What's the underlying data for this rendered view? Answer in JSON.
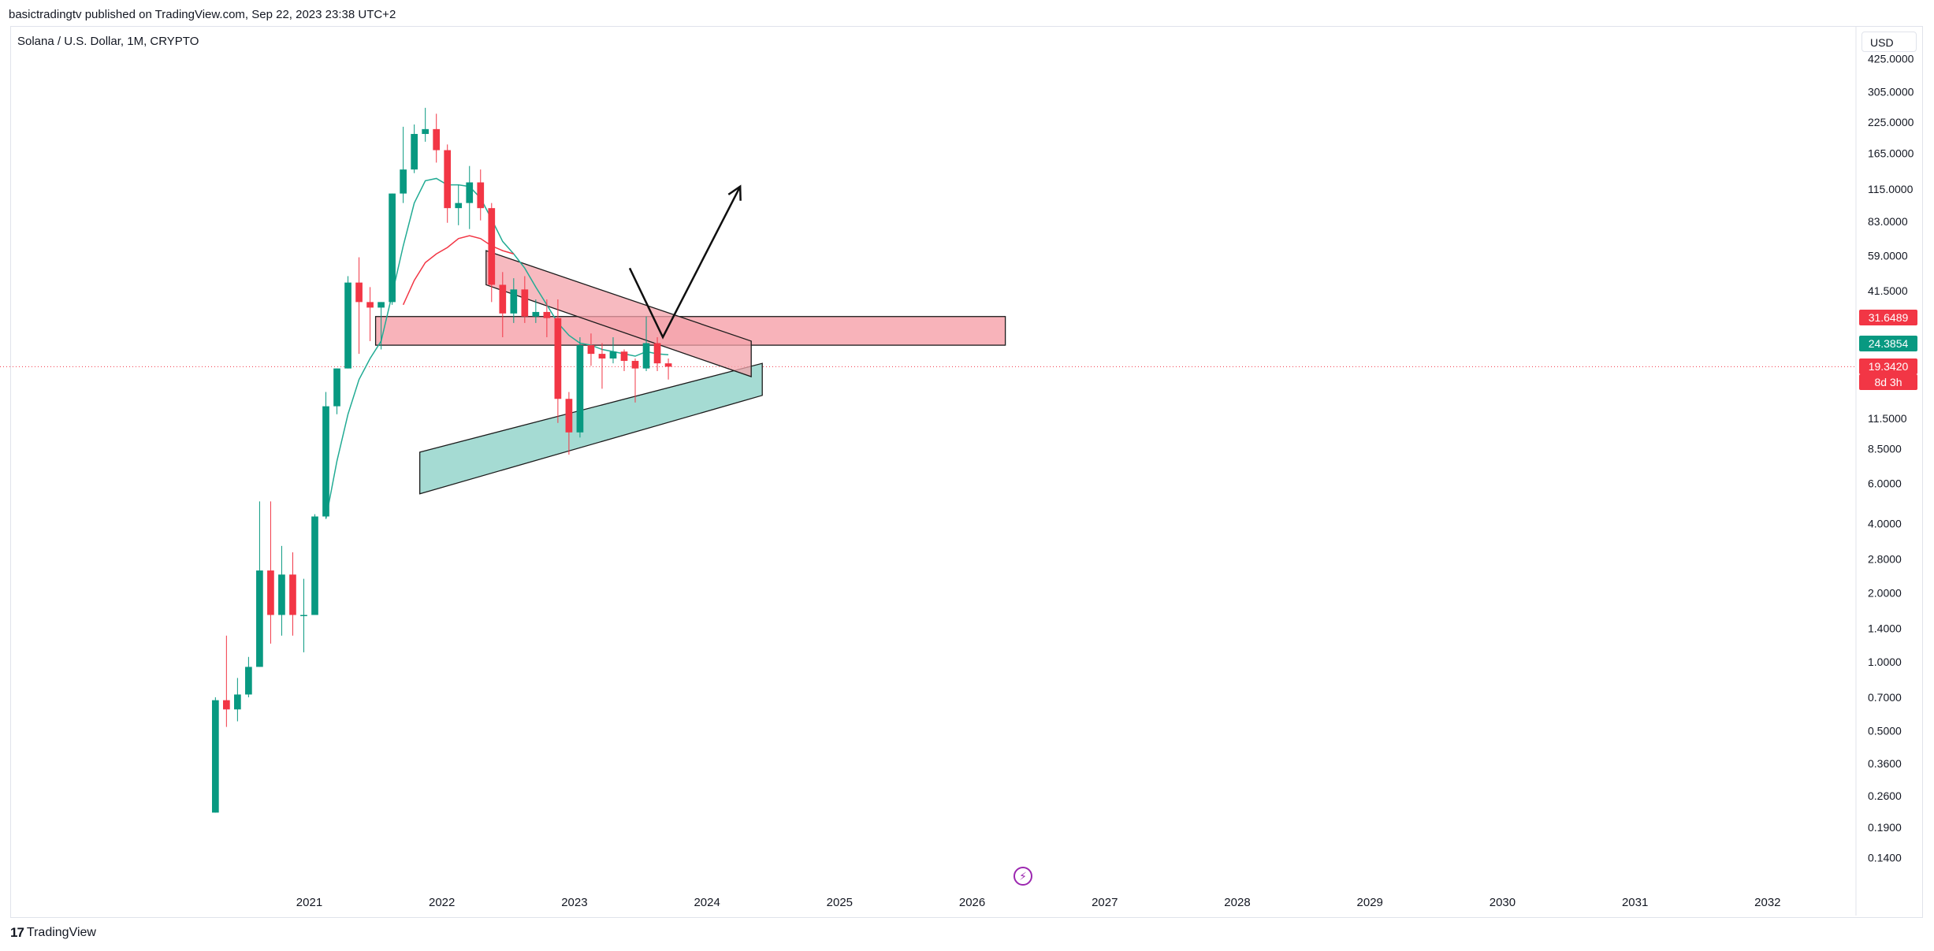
{
  "header": {
    "published_by": "basictradingtv published on TradingView.com, Sep 22, 2023 23:38 UTC+2",
    "symbol_title": "Solana / U.S. Dollar, 1M, CRYPTO"
  },
  "toolbar": {
    "currency_label": "USD"
  },
  "footer": {
    "logo_mark": "17",
    "logo_text": "TradingView"
  },
  "icons": {
    "flash": "lightning-icon"
  },
  "colors": {
    "up": "#089981",
    "down": "#f23645",
    "resistance_zone": "#f7a6ae",
    "support_channel": "#a5dbd3",
    "wedge": "#f4a3ab",
    "ma_fast": "#22ab94",
    "ma_slow": "#f23645",
    "current_price_line": "#f23645"
  },
  "price_tags": [
    {
      "label": "31.6489",
      "price": 31.6489,
      "color": "#f23645"
    },
    {
      "label": "24.3854",
      "price": 24.3854,
      "color": "#089981"
    },
    {
      "label": "19.3420",
      "price": 19.342,
      "color": "#f23645",
      "sub": "8d 3h"
    }
  ],
  "chart_data": {
    "type": "candlestick",
    "title": "Solana / U.S. Dollar, 1M, CRYPTO",
    "y_scale": "log",
    "ylim": [
      0.12,
      470
    ],
    "y_ticks": [
      {
        "label": "425.0000",
        "value": 425
      },
      {
        "label": "305.0000",
        "value": 305
      },
      {
        "label": "225.0000",
        "value": 225
      },
      {
        "label": "165.0000",
        "value": 165
      },
      {
        "label": "115.0000",
        "value": 115
      },
      {
        "label": "83.0000",
        "value": 83
      },
      {
        "label": "59.0000",
        "value": 59
      },
      {
        "label": "41.5000",
        "value": 41.5
      },
      {
        "label": "11.5000",
        "value": 11.5
      },
      {
        "label": "8.5000",
        "value": 8.5
      },
      {
        "label": "6.0000",
        "value": 6
      },
      {
        "label": "4.0000",
        "value": 4
      },
      {
        "label": "2.8000",
        "value": 2.8
      },
      {
        "label": "2.0000",
        "value": 2
      },
      {
        "label": "1.4000",
        "value": 1.4
      },
      {
        "label": "1.0000",
        "value": 1
      },
      {
        "label": "0.7000",
        "value": 0.7
      },
      {
        "label": "0.5000",
        "value": 0.5
      },
      {
        "label": "0.3600",
        "value": 0.36
      },
      {
        "label": "0.2600",
        "value": 0.26
      },
      {
        "label": "0.1900",
        "value": 0.19
      },
      {
        "label": "0.1400",
        "value": 0.14
      }
    ],
    "x_ticks": [
      "2021",
      "2022",
      "2023",
      "2024",
      "2025",
      "2026",
      "2027",
      "2028",
      "2029",
      "2030",
      "2031",
      "2032"
    ],
    "xlim": [
      "2018-10",
      "2032-09"
    ],
    "candles": [
      {
        "t": "2020-04",
        "o": 0.22,
        "h": 0.7,
        "l": 0.22,
        "c": 0.68
      },
      {
        "t": "2020-05",
        "o": 0.68,
        "h": 1.3,
        "l": 0.52,
        "c": 0.62
      },
      {
        "t": "2020-06",
        "o": 0.62,
        "h": 0.85,
        "l": 0.55,
        "c": 0.72
      },
      {
        "t": "2020-07",
        "o": 0.72,
        "h": 1.05,
        "l": 0.7,
        "c": 0.95
      },
      {
        "t": "2020-08",
        "o": 0.95,
        "h": 5.0,
        "l": 0.95,
        "c": 2.5
      },
      {
        "t": "2020-09",
        "o": 2.5,
        "h": 5.0,
        "l": 1.2,
        "c": 1.6
      },
      {
        "t": "2020-10",
        "o": 1.6,
        "h": 3.2,
        "l": 1.3,
        "c": 2.4
      },
      {
        "t": "2020-11",
        "o": 2.4,
        "h": 3.0,
        "l": 1.3,
        "c": 1.6
      },
      {
        "t": "2020-12",
        "o": 1.6,
        "h": 2.3,
        "l": 1.1,
        "c": 1.6
      },
      {
        "t": "2021-01",
        "o": 1.6,
        "h": 4.4,
        "l": 1.6,
        "c": 4.3
      },
      {
        "t": "2021-02",
        "o": 4.3,
        "h": 15.0,
        "l": 4.2,
        "c": 13.0
      },
      {
        "t": "2021-03",
        "o": 13.0,
        "h": 19.0,
        "l": 12.0,
        "c": 19.0
      },
      {
        "t": "2021-04",
        "o": 19.0,
        "h": 48.0,
        "l": 19.0,
        "c": 45.0
      },
      {
        "t": "2021-05",
        "o": 45.0,
        "h": 58.0,
        "l": 22.0,
        "c": 37.0
      },
      {
        "t": "2021-06",
        "o": 37.0,
        "h": 43.0,
        "l": 25.0,
        "c": 35.0
      },
      {
        "t": "2021-07",
        "o": 35.0,
        "h": 37.0,
        "l": 23.0,
        "c": 37.0
      },
      {
        "t": "2021-08",
        "o": 37.0,
        "h": 110.0,
        "l": 36.0,
        "c": 110.0
      },
      {
        "t": "2021-09",
        "o": 110.0,
        "h": 215.0,
        "l": 100.0,
        "c": 140.0
      },
      {
        "t": "2021-10",
        "o": 140.0,
        "h": 220.0,
        "l": 135.0,
        "c": 200.0
      },
      {
        "t": "2021-11",
        "o": 200.0,
        "h": 260.0,
        "l": 185.0,
        "c": 210.0
      },
      {
        "t": "2021-12",
        "o": 210.0,
        "h": 245.0,
        "l": 150.0,
        "c": 170.0
      },
      {
        "t": "2022-01",
        "o": 170.0,
        "h": 180.0,
        "l": 82.0,
        "c": 95.0
      },
      {
        "t": "2022-02",
        "o": 95.0,
        "h": 120.0,
        "l": 80.0,
        "c": 100.0
      },
      {
        "t": "2022-03",
        "o": 100.0,
        "h": 145.0,
        "l": 77.0,
        "c": 123.0
      },
      {
        "t": "2022-04",
        "o": 123.0,
        "h": 140.0,
        "l": 84.0,
        "c": 95.0
      },
      {
        "t": "2022-05",
        "o": 95.0,
        "h": 100.0,
        "l": 37.0,
        "c": 44.0
      },
      {
        "t": "2022-06",
        "o": 44.0,
        "h": 50.0,
        "l": 26.0,
        "c": 33.0
      },
      {
        "t": "2022-07",
        "o": 33.0,
        "h": 47.0,
        "l": 30.0,
        "c": 42.0
      },
      {
        "t": "2022-08",
        "o": 42.0,
        "h": 48.0,
        "l": 30.0,
        "c": 32.0
      },
      {
        "t": "2022-09",
        "o": 32.0,
        "h": 38.0,
        "l": 30.0,
        "c": 33.5
      },
      {
        "t": "2022-10",
        "o": 33.5,
        "h": 38.0,
        "l": 26.0,
        "c": 31.5
      },
      {
        "t": "2022-11",
        "o": 31.5,
        "h": 38.0,
        "l": 11.0,
        "c": 14.0
      },
      {
        "t": "2022-12",
        "o": 14.0,
        "h": 15.0,
        "l": 8.0,
        "c": 10.0
      },
      {
        "t": "2023-01",
        "o": 10.0,
        "h": 26.0,
        "l": 9.5,
        "c": 24.0
      },
      {
        "t": "2023-02",
        "o": 24.0,
        "h": 27.0,
        "l": 19.5,
        "c": 22.0
      },
      {
        "t": "2023-03",
        "o": 22.0,
        "h": 24.5,
        "l": 15.5,
        "c": 21.0
      },
      {
        "t": "2023-04",
        "o": 21.0,
        "h": 26.0,
        "l": 20.0,
        "c": 22.5
      },
      {
        "t": "2023-05",
        "o": 22.5,
        "h": 23.0,
        "l": 18.5,
        "c": 20.5
      },
      {
        "t": "2023-06",
        "o": 20.5,
        "h": 21.0,
        "l": 13.5,
        "c": 19.0
      },
      {
        "t": "2023-07",
        "o": 19.0,
        "h": 32.0,
        "l": 18.5,
        "c": 24.5
      },
      {
        "t": "2023-08",
        "o": 24.5,
        "h": 26.0,
        "l": 18.5,
        "c": 20.0
      },
      {
        "t": "2023-09",
        "o": 20.0,
        "h": 21.0,
        "l": 17.0,
        "c": 19.34
      }
    ],
    "ma_fast": [
      {
        "t": "2021-02",
        "v": 4.2
      },
      {
        "t": "2021-03",
        "v": 7.5
      },
      {
        "t": "2021-04",
        "v": 12.0
      },
      {
        "t": "2021-05",
        "v": 17.0
      },
      {
        "t": "2021-06",
        "v": 21.0
      },
      {
        "t": "2021-07",
        "v": 25.0
      },
      {
        "t": "2021-08",
        "v": 40.0
      },
      {
        "t": "2021-09",
        "v": 65.0
      },
      {
        "t": "2021-10",
        "v": 100.0
      },
      {
        "t": "2021-11",
        "v": 125.0
      },
      {
        "t": "2021-12",
        "v": 128.0
      },
      {
        "t": "2022-01",
        "v": 120.0
      },
      {
        "t": "2022-02",
        "v": 120.0
      },
      {
        "t": "2022-03",
        "v": 118.0
      },
      {
        "t": "2022-04",
        "v": 105.0
      },
      {
        "t": "2022-05",
        "v": 85.0
      },
      {
        "t": "2022-06",
        "v": 68.0
      },
      {
        "t": "2022-07",
        "v": 60.0
      },
      {
        "t": "2022-08",
        "v": 52.0
      },
      {
        "t": "2022-09",
        "v": 43.0
      },
      {
        "t": "2022-10",
        "v": 36.0
      },
      {
        "t": "2022-11",
        "v": 30.0
      },
      {
        "t": "2022-12",
        "v": 26.5
      },
      {
        "t": "2023-01",
        "v": 24.5
      },
      {
        "t": "2023-02",
        "v": 24.0
      },
      {
        "t": "2023-03",
        "v": 23.0
      },
      {
        "t": "2023-04",
        "v": 22.5
      },
      {
        "t": "2023-05",
        "v": 22.0
      },
      {
        "t": "2023-06",
        "v": 21.5
      },
      {
        "t": "2023-07",
        "v": 22.5
      },
      {
        "t": "2023-08",
        "v": 22.0
      },
      {
        "t": "2023-09",
        "v": 21.8
      }
    ],
    "ma_slow": [
      {
        "t": "2021-09",
        "v": 36.0
      },
      {
        "t": "2021-10",
        "v": 46.0
      },
      {
        "t": "2021-11",
        "v": 55.0
      },
      {
        "t": "2021-12",
        "v": 60.0
      },
      {
        "t": "2022-01",
        "v": 64.0
      },
      {
        "t": "2022-02",
        "v": 70.0
      },
      {
        "t": "2022-03",
        "v": 72.0
      },
      {
        "t": "2022-04",
        "v": 70.0
      },
      {
        "t": "2022-05",
        "v": 65.0
      },
      {
        "t": "2022-06",
        "v": 62.0
      },
      {
        "t": "2022-07",
        "v": 60.0
      }
    ],
    "annotations": {
      "resistance_zone": {
        "t1": "2021-07",
        "t2": "2026-04",
        "p_low": 24.0,
        "p_high": 32.0
      },
      "wedge": [
        {
          "t": "2022-05",
          "p": 62.0
        },
        {
          "t": "2024-05",
          "p": 25.0
        },
        {
          "t": "2024-05",
          "p": 17.5
        },
        {
          "t": "2022-05",
          "p": 44.0
        }
      ],
      "support_channel": [
        {
          "t": "2021-11",
          "p": 8.2
        },
        {
          "t": "2024-06",
          "p": 20.0
        },
        {
          "t": "2024-06",
          "p": 14.5
        },
        {
          "t": "2021-11",
          "p": 5.4
        }
      ],
      "projection_path": [
        {
          "t": "2023-06",
          "p": 52.0
        },
        {
          "t": "2023-09",
          "p": 26.0
        },
        {
          "t": "2024-04",
          "p": 118.0
        }
      ],
      "current_price": 19.342
    }
  }
}
